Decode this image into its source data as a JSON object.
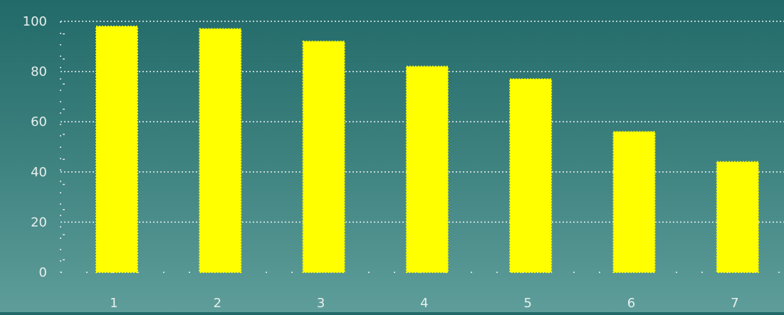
{
  "chart_data": {
    "type": "bar",
    "categories": [
      "1",
      "2",
      "3",
      "4",
      "5",
      "6",
      "7"
    ],
    "values": [
      98,
      97,
      92,
      82,
      77,
      56,
      44
    ],
    "title": "",
    "xlabel": "",
    "ylabel": "",
    "ylim": [
      0,
      100
    ],
    "yticks": [
      "0",
      "20",
      "40",
      "60",
      "80",
      "100"
    ],
    "grid": true,
    "bar_color": "#ffff00",
    "grid_color": "#ffffff",
    "tick_label_color": "#e8f0ee",
    "background_top": "#226a6a",
    "background_bottom": "#5e9d9a"
  }
}
